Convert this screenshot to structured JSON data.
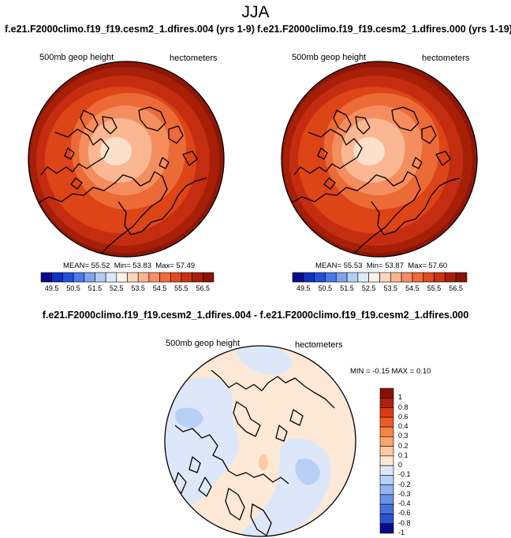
{
  "main_title": "JJA",
  "left_panel": {
    "title": "f.e21.F2000climo.f19_f19.cesm2_1.dfires.004 (yrs 1-9)",
    "field_label": "500mb geop height",
    "units_label": "hectometers",
    "stats": {
      "mean_label": "MEAN=",
      "mean": "55.52",
      "min_label": "Min=",
      "min": "53.83",
      "max_label": "Max=",
      "max": "57.49"
    }
  },
  "right_panel": {
    "title": "f.e21.F2000climo.f19_f19.cesm2_1.dfires.000 (yrs 1-19)",
    "field_label": "500mb geop height",
    "units_label": "hectometers",
    "stats": {
      "mean_label": "MEAN=",
      "mean": "55.53",
      "min_label": "Min=",
      "min": "53.87",
      "max_label": "Max=",
      "max": "57.60"
    }
  },
  "diff_panel": {
    "title": "f.e21.F2000climo.f19_f19.cesm2_1.dfires.004 - f.e21.F2000climo.f19_f19.cesm2_1.dfires.000",
    "field_label": "500mb geop height",
    "units_label": "hectometers",
    "stats_label": "MIN = -0.15 MAX =  0.10"
  },
  "colors": {
    "abs_colorbar": [
      "#0a0a8c",
      "#1030c0",
      "#2050d8",
      "#4d79e6",
      "#7fa3ee",
      "#b2ccf6",
      "#dde9fb",
      "#fff3e6",
      "#fdd7bd",
      "#fbb690",
      "#f88e60",
      "#f06a3a",
      "#e04a1e",
      "#c93212",
      "#a81f08",
      "#8a1204"
    ],
    "diff_colorbar": [
      "#8a1204",
      "#b02208",
      "#d93b14",
      "#ee5b28",
      "#f78345",
      "#fba56e",
      "#fdc9a2",
      "#fde8d6",
      "#dce8fa",
      "#b9d0f6",
      "#92b3f0",
      "#6a90e8",
      "#4670de",
      "#2b52cf",
      "#0a0a8c"
    ]
  },
  "chart_data": [
    {
      "type": "heatmap",
      "title": "f.e21.F2000climo.f19_f19.cesm2_1.dfires.004 (yrs 1-9)",
      "variable": "500mb geop height",
      "units": "hectometers",
      "projection": "north polar stereographic",
      "colorbar_ticks": [
        49.5,
        50.5,
        51.5,
        52.5,
        53.5,
        54.5,
        55.5,
        56.5
      ],
      "colorbar_ticks_text": [
        "49.5",
        "50.5",
        "51.5",
        "52.5",
        "53.5",
        "54.5",
        "55.5",
        "56.5"
      ],
      "colorbar_interval": 0.5,
      "contour_rings": [
        54.0,
        54.5,
        55.0,
        55.5,
        56.0,
        56.5,
        57.0
      ],
      "mean": 55.52,
      "min": 53.83,
      "max": 57.49
    },
    {
      "type": "heatmap",
      "title": "f.e21.F2000climo.f19_f19.cesm2_1.dfires.000 (yrs 1-19)",
      "variable": "500mb geop height",
      "units": "hectometers",
      "projection": "north polar stereographic",
      "colorbar_ticks": [
        49.5,
        50.5,
        51.5,
        52.5,
        53.5,
        54.5,
        55.5,
        56.5
      ],
      "colorbar_ticks_text": [
        "49.5",
        "50.5",
        "51.5",
        "52.5",
        "53.5",
        "54.5",
        "55.5",
        "56.5"
      ],
      "colorbar_interval": 0.5,
      "contour_rings": [
        54.0,
        54.5,
        55.0,
        55.5,
        56.0,
        56.5,
        57.0
      ],
      "mean": 55.53,
      "min": 53.87,
      "max": 57.6
    },
    {
      "type": "heatmap",
      "title": "f.e21.F2000climo.f19_f19.cesm2_1.dfires.004 - f.e21.F2000climo.f19_f19.cesm2_1.dfires.000",
      "variable": "500mb geop height",
      "units": "hectometers",
      "projection": "north polar stereographic",
      "colorbar_ticks": [
        1,
        0.8,
        0.6,
        0.4,
        0.3,
        0.2,
        0.1,
        0,
        -0.1,
        -0.2,
        -0.3,
        -0.4,
        -0.6,
        -0.8,
        -1
      ],
      "colorbar_ticks_text": [
        "1",
        "0.8",
        "0.6",
        "0.4",
        "0.3",
        "0.2",
        "0.1",
        "0",
        "-0.1",
        "-0.2",
        "-0.3",
        "-0.4",
        "-0.6",
        "-0.8",
        "-1"
      ],
      "min": -0.15,
      "max": 0.1
    }
  ]
}
